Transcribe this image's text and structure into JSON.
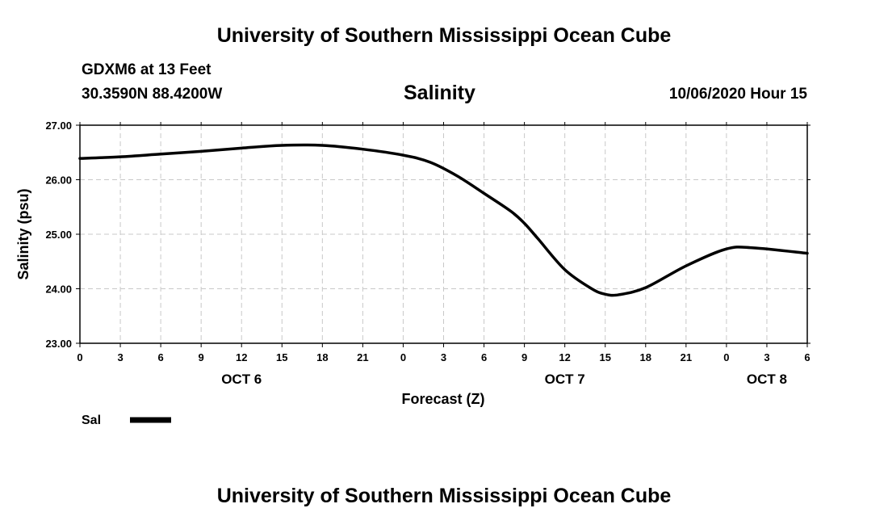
{
  "header": {
    "title": "University of Southern Mississippi Ocean Cube",
    "station": "GDXM6 at 13 Feet",
    "coordinates": "30.3590N 88.4200W",
    "parameter": "Salinity",
    "datetime": "10/06/2020 Hour 15"
  },
  "footer": {
    "title": "University of Southern Mississippi Ocean Cube"
  },
  "chart_data": {
    "type": "line",
    "title": "Salinity",
    "xlabel": "Forecast (Z)",
    "ylabel": "Salinity (psu)",
    "ylim": [
      23.0,
      27.0
    ],
    "xlim": [
      0,
      54
    ],
    "y_ticks": [
      "23.00",
      "24.00",
      "25.00",
      "26.00",
      "27.00"
    ],
    "y_tick_values": [
      23,
      24,
      25,
      26,
      27
    ],
    "x_ticks": [
      "0",
      "3",
      "6",
      "9",
      "12",
      "15",
      "18",
      "21",
      "0",
      "3",
      "6",
      "9",
      "12",
      "15",
      "18",
      "21",
      "0",
      "3",
      "6"
    ],
    "x_tick_hours": [
      0,
      3,
      6,
      9,
      12,
      15,
      18,
      21,
      24,
      27,
      30,
      33,
      36,
      39,
      42,
      45,
      48,
      51,
      54
    ],
    "date_labels": [
      {
        "label": "OCT 6",
        "hour": 12
      },
      {
        "label": "OCT 7",
        "hour": 36
      },
      {
        "label": "OCT 8",
        "hour": 51
      }
    ],
    "grid": true,
    "series": [
      {
        "name": "Sal",
        "color": "#000000",
        "hours": [
          0,
          3,
          6,
          9,
          12,
          15,
          18,
          21,
          24,
          26,
          28,
          30,
          32,
          33,
          34,
          36,
          38,
          39,
          40,
          42,
          45,
          48,
          50,
          54
        ],
        "values": [
          26.39,
          26.42,
          26.47,
          26.52,
          26.58,
          26.63,
          26.63,
          26.56,
          26.45,
          26.32,
          26.07,
          25.75,
          25.42,
          25.2,
          24.92,
          24.35,
          24.0,
          23.9,
          23.89,
          24.02,
          24.42,
          24.73,
          24.75,
          24.65
        ]
      }
    ],
    "legend": {
      "label": "Sal",
      "placement": "bottom-left"
    }
  }
}
